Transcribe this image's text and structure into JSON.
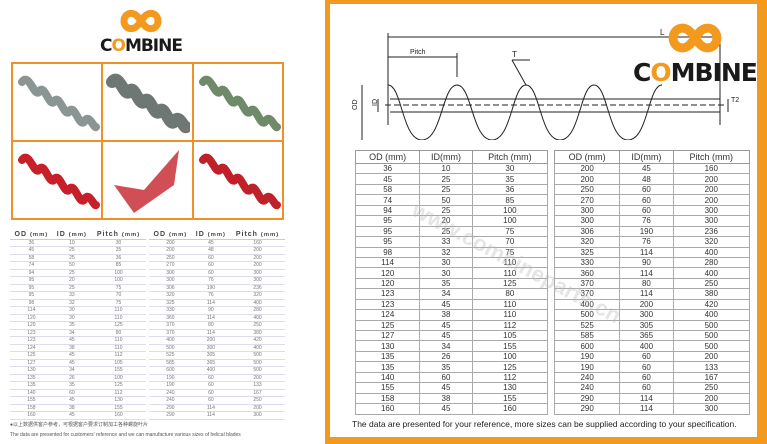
{
  "brand": {
    "name": "COMBINE",
    "accent": "#f39a1e",
    "frame_color": "#f0902a"
  },
  "photos": [
    {
      "label": "grey-spiral-blade"
    },
    {
      "label": "grey-stacked-flights"
    },
    {
      "label": "green-grey-spiral"
    },
    {
      "label": "red-spiral-blade"
    },
    {
      "label": "red-single-flight"
    },
    {
      "label": "red-tight-spiral"
    }
  ],
  "diagram": {
    "labels": {
      "length": "L",
      "pitch": "Pitch",
      "thickness": "T",
      "od": "OD",
      "id": "ID",
      "t2": "T2"
    }
  },
  "left_tables": {
    "headers": [
      "OD",
      "ID",
      "Pitch"
    ],
    "unit": "(mm)",
    "note_cn": "●以上数据供客户参考，可根据客户要求订制加工各种螺旋叶片",
    "note_en": "The data are presented for customers' reference and we can manufacture various sizes of helical blades"
  },
  "right_tables": {
    "headers": [
      "OD (mm)",
      "ID(mm)",
      "Pitch (mm)"
    ],
    "note": "The data are presented for your reference, more sizes can be supplied according to your specification."
  },
  "table1_rows": [
    [
      "36",
      "10",
      "30"
    ],
    [
      "45",
      "25",
      "35"
    ],
    [
      "58",
      "25",
      "36"
    ],
    [
      "74",
      "50",
      "85"
    ],
    [
      "94",
      "25",
      "100"
    ],
    [
      "95",
      "20",
      "100"
    ],
    [
      "95",
      "25",
      "75"
    ],
    [
      "95",
      "33",
      "70"
    ],
    [
      "98",
      "32",
      "75"
    ],
    [
      "114",
      "30",
      "110"
    ],
    [
      "120",
      "30",
      "110"
    ],
    [
      "120",
      "35",
      "125"
    ],
    [
      "123",
      "34",
      "80"
    ],
    [
      "123",
      "45",
      "110"
    ],
    [
      "124",
      "38",
      "110"
    ],
    [
      "125",
      "45",
      "112"
    ],
    [
      "127",
      "45",
      "105"
    ],
    [
      "130",
      "34",
      "155"
    ],
    [
      "135",
      "26",
      "100"
    ],
    [
      "135",
      "35",
      "125"
    ],
    [
      "140",
      "60",
      "112"
    ],
    [
      "155",
      "45",
      "130"
    ],
    [
      "158",
      "38",
      "155"
    ],
    [
      "160",
      "45",
      "160"
    ]
  ],
  "table2_rows": [
    [
      "200",
      "45",
      "160"
    ],
    [
      "200",
      "48",
      "200"
    ],
    [
      "250",
      "60",
      "200"
    ],
    [
      "270",
      "60",
      "200"
    ],
    [
      "300",
      "60",
      "300"
    ],
    [
      "300",
      "76",
      "300"
    ],
    [
      "306",
      "190",
      "236"
    ],
    [
      "320",
      "76",
      "320"
    ],
    [
      "325",
      "114",
      "400"
    ],
    [
      "330",
      "90",
      "280"
    ],
    [
      "360",
      "114",
      "400"
    ],
    [
      "370",
      "80",
      "250"
    ],
    [
      "370",
      "114",
      "380"
    ],
    [
      "400",
      "200",
      "420"
    ],
    [
      "500",
      "300",
      "400"
    ],
    [
      "525",
      "305",
      "500"
    ],
    [
      "585",
      "365",
      "500"
    ],
    [
      "600",
      "400",
      "500"
    ],
    [
      "190",
      "60",
      "200"
    ],
    [
      "190",
      "60",
      "133"
    ],
    [
      "240",
      "60",
      "167"
    ],
    [
      "240",
      "60",
      "250"
    ],
    [
      "290",
      "114",
      "200"
    ],
    [
      "290",
      "114",
      "300"
    ]
  ],
  "watermark": "www.combineparts.cn"
}
